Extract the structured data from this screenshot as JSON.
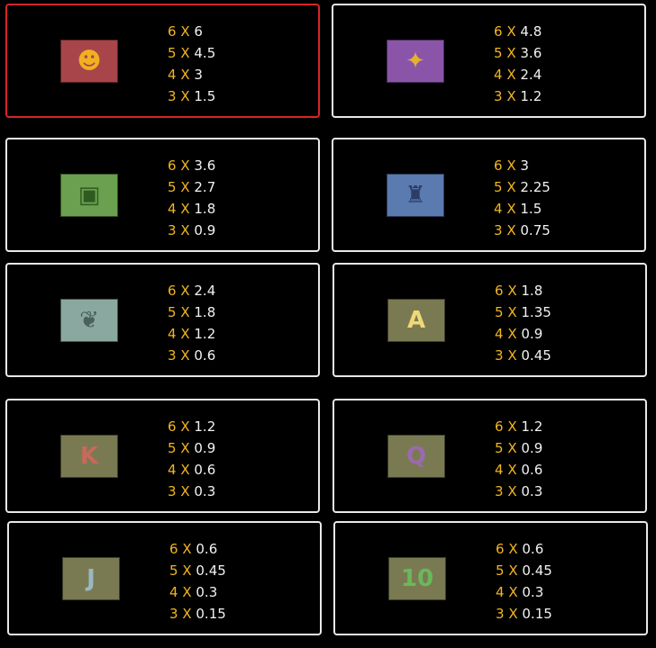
{
  "accent_color": "#f2b622",
  "selected_border_color": "#d8252a",
  "symbols": [
    {
      "icon": "red-mask-icon",
      "glyph": "☻",
      "bg": "#a8454a",
      "fg": "#f0b020",
      "selected": true,
      "pays": [
        {
          "n": "6",
          "x": "X",
          "v": "6"
        },
        {
          "n": "5",
          "x": "X",
          "v": "4.5"
        },
        {
          "n": "4",
          "x": "X",
          "v": "3"
        },
        {
          "n": "3",
          "x": "X",
          "v": "1.5"
        }
      ]
    },
    {
      "icon": "purple-bird-icon",
      "glyph": "✦",
      "bg": "#8a55a8",
      "fg": "#e8b030",
      "pays": [
        {
          "n": "6",
          "x": "X",
          "v": "4.8"
        },
        {
          "n": "5",
          "x": "X",
          "v": "3.6"
        },
        {
          "n": "4",
          "x": "X",
          "v": "2.4"
        },
        {
          "n": "3",
          "x": "X",
          "v": "1.2"
        }
      ]
    },
    {
      "icon": "green-glyph-icon",
      "glyph": "▣",
      "bg": "#6aa050",
      "fg": "#2f5a20",
      "pays": [
        {
          "n": "6",
          "x": "X",
          "v": "3.6"
        },
        {
          "n": "5",
          "x": "X",
          "v": "2.7"
        },
        {
          "n": "4",
          "x": "X",
          "v": "1.8"
        },
        {
          "n": "3",
          "x": "X",
          "v": "0.9"
        }
      ]
    },
    {
      "icon": "blue-idol-icon",
      "glyph": "♜",
      "bg": "#5a7ab0",
      "fg": "#2a3e66",
      "pays": [
        {
          "n": "6",
          "x": "X",
          "v": "3"
        },
        {
          "n": "5",
          "x": "X",
          "v": "2.25"
        },
        {
          "n": "4",
          "x": "X",
          "v": "1.5"
        },
        {
          "n": "3",
          "x": "X",
          "v": "0.75"
        }
      ]
    },
    {
      "icon": "stone-leaf-icon",
      "glyph": "❦",
      "bg": "#8aa8a0",
      "fg": "#4a625c",
      "pays": [
        {
          "n": "6",
          "x": "X",
          "v": "2.4"
        },
        {
          "n": "5",
          "x": "X",
          "v": "1.8"
        },
        {
          "n": "4",
          "x": "X",
          "v": "1.2"
        },
        {
          "n": "3",
          "x": "X",
          "v": "0.6"
        }
      ]
    },
    {
      "icon": "letter-a-icon",
      "glyph": "A",
      "bg": "#7a7a52",
      "fg": "#f0d878",
      "pays": [
        {
          "n": "6",
          "x": "X",
          "v": "1.8"
        },
        {
          "n": "5",
          "x": "X",
          "v": "1.35"
        },
        {
          "n": "4",
          "x": "X",
          "v": "0.9"
        },
        {
          "n": "3",
          "x": "X",
          "v": "0.45"
        }
      ]
    },
    {
      "icon": "letter-k-icon",
      "glyph": "K",
      "bg": "#7a7a52",
      "fg": "#c86a5a",
      "pays": [
        {
          "n": "6",
          "x": "X",
          "v": "1.2"
        },
        {
          "n": "5",
          "x": "X",
          "v": "0.9"
        },
        {
          "n": "4",
          "x": "X",
          "v": "0.6"
        },
        {
          "n": "3",
          "x": "X",
          "v": "0.3"
        }
      ]
    },
    {
      "icon": "letter-q-icon",
      "glyph": "Q",
      "bg": "#7a7a52",
      "fg": "#9a6ab0",
      "pays": [
        {
          "n": "6",
          "x": "X",
          "v": "1.2"
        },
        {
          "n": "5",
          "x": "X",
          "v": "0.9"
        },
        {
          "n": "4",
          "x": "X",
          "v": "0.6"
        },
        {
          "n": "3",
          "x": "X",
          "v": "0.3"
        }
      ]
    },
    {
      "icon": "letter-j-icon",
      "glyph": "J",
      "bg": "#7a7a52",
      "fg": "#9ab8c0",
      "pays": [
        {
          "n": "6",
          "x": "X",
          "v": "0.6"
        },
        {
          "n": "5",
          "x": "X",
          "v": "0.45"
        },
        {
          "n": "4",
          "x": "X",
          "v": "0.3"
        },
        {
          "n": "3",
          "x": "X",
          "v": "0.15"
        }
      ]
    },
    {
      "icon": "number-10-icon",
      "glyph": "10",
      "bg": "#7a7a52",
      "fg": "#6ab85a",
      "pays": [
        {
          "n": "6",
          "x": "X",
          "v": "0.6"
        },
        {
          "n": "5",
          "x": "X",
          "v": "0.45"
        },
        {
          "n": "4",
          "x": "X",
          "v": "0.3"
        },
        {
          "n": "3",
          "x": "X",
          "v": "0.15"
        }
      ]
    }
  ]
}
